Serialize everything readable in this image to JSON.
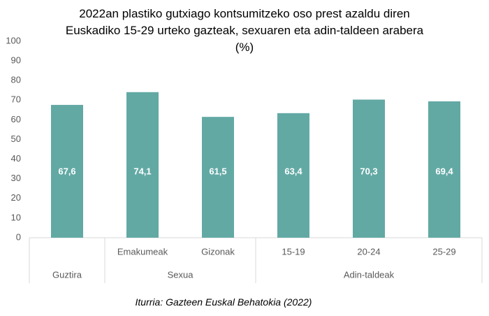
{
  "chart_data": {
    "type": "bar",
    "title": "2022an plastiko gutxiago kontsumitzeko oso prest azaldu diren Euskadiko 15-29 urteko gazteak, sexuaren eta adin-taldeen arabera (%)",
    "categories": [
      null,
      "Emakumeak",
      "Gizonak",
      "15-19",
      "20-24",
      "25-29"
    ],
    "groups": [
      {
        "name": "Guztira",
        "size": 1
      },
      {
        "name": "Sexua",
        "size": 2
      },
      {
        "name": "Adin-taldeak",
        "size": 3
      }
    ],
    "values": [
      67.6,
      74.1,
      61.5,
      63.4,
      70.3,
      69.4
    ],
    "value_labels": [
      "67,6",
      "74,1",
      "61,5",
      "63,4",
      "70,3",
      "69,4"
    ],
    "color": "#62a9a4",
    "ylim": [
      0,
      100
    ],
    "yticks": [
      0,
      10,
      20,
      30,
      40,
      50,
      60,
      70,
      80,
      90,
      100
    ],
    "grid": false,
    "source": "Iturria: Gazteen Euskal Behatokia (2022)"
  }
}
